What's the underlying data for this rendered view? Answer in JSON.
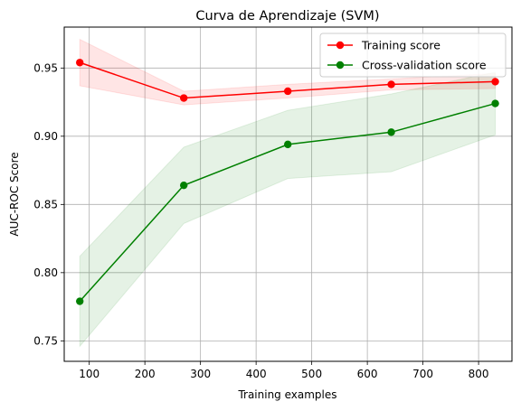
{
  "chart_data": {
    "type": "line",
    "title": "Curva de Aprendizaje (SVM)",
    "xlabel": "Training examples",
    "ylabel": "AUC-ROC Score",
    "xlim": [
      55,
      860
    ],
    "ylim": [
      0.735,
      0.98
    ],
    "xticks": [
      100,
      200,
      300,
      400,
      500,
      600,
      700,
      800
    ],
    "yticks": [
      0.75,
      0.8,
      0.85,
      0.9,
      0.95
    ],
    "ytick_labels": [
      "0.75",
      "0.80",
      "0.85",
      "0.90",
      "0.95"
    ],
    "grid": true,
    "legend_position": "top-right",
    "x": [
      83,
      270,
      457,
      643,
      830
    ],
    "series": [
      {
        "name": "Training score",
        "color": "#ff0000",
        "values": [
          0.954,
          0.928,
          0.933,
          0.938,
          0.94
        ],
        "band_low": [
          0.937,
          0.923,
          0.928,
          0.934,
          0.935
        ],
        "band_high": [
          0.971,
          0.933,
          0.938,
          0.942,
          0.946
        ]
      },
      {
        "name": "Cross-validation score",
        "color": "#008000",
        "values": [
          0.779,
          0.864,
          0.894,
          0.903,
          0.924
        ],
        "band_low": [
          0.746,
          0.836,
          0.869,
          0.874,
          0.901
        ],
        "band_high": [
          0.812,
          0.892,
          0.919,
          0.931,
          0.947
        ]
      }
    ]
  }
}
